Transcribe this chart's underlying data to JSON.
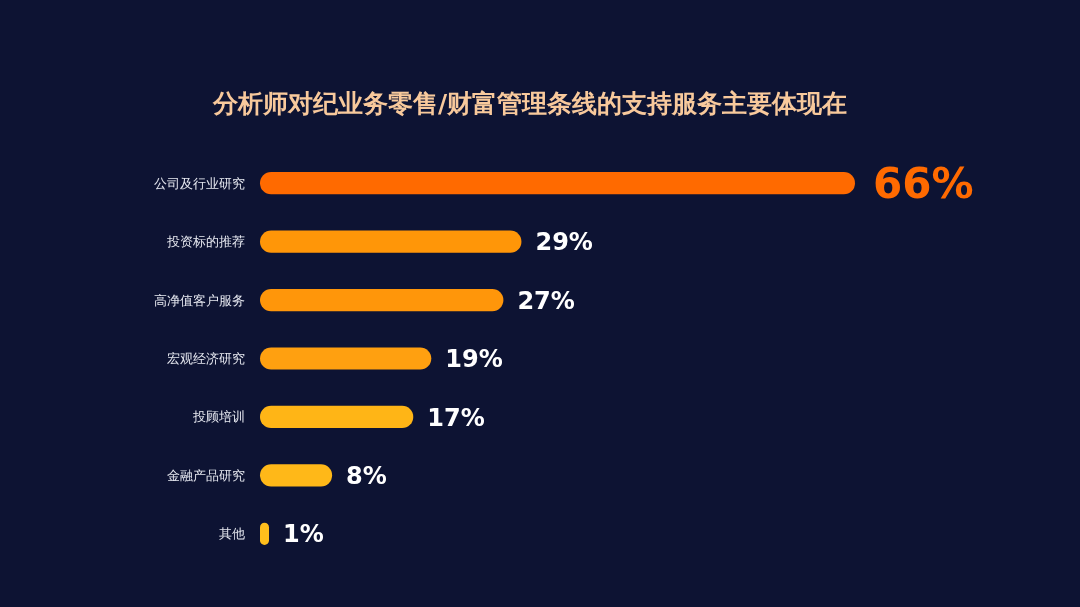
{
  "chart_data": {
    "type": "bar",
    "orientation": "horizontal",
    "relative": false,
    "title": "分析师对纪业务零售/财富管理条线的支持服务主要体现在",
    "categories": [
      "公司及行业研究",
      "投资标的推荐",
      "高净值客户服务",
      "宏观经济研究",
      "投顾培训",
      "金融产品研究",
      "其他"
    ],
    "values": [
      66,
      29,
      27,
      19,
      17,
      8,
      1
    ],
    "colors": [
      "#ff6a00",
      "#ff9608",
      "#ff960a",
      "#ffa010",
      "#ffb516",
      "#ffb818",
      "#ffbe1c"
    ],
    "value_labels": [
      "66%",
      "29%",
      "27%",
      "19%",
      "17%",
      "8%",
      "1%"
    ]
  }
}
